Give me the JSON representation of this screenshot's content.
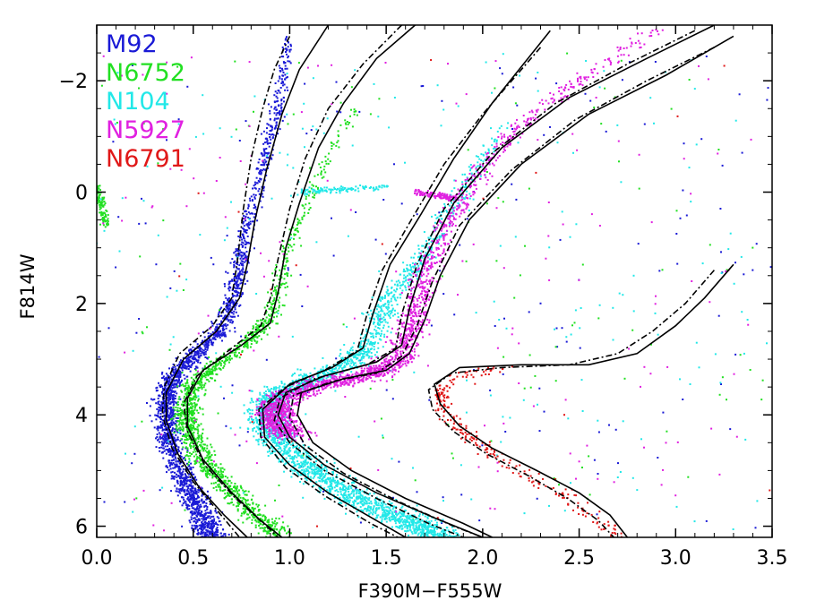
{
  "chart_data": {
    "type": "scatter",
    "title": "",
    "xlabel": "F390M−F555W",
    "ylabel": "F814W",
    "xlim": [
      0.0,
      3.5
    ],
    "ylim": [
      6.2,
      -3.0
    ],
    "y_inverted": true,
    "grid": false,
    "legend_position": "top-left",
    "x_ticks": [
      {
        "value": 0.0,
        "label": "0.0"
      },
      {
        "value": 0.5,
        "label": "0.5"
      },
      {
        "value": 1.0,
        "label": "1.0"
      },
      {
        "value": 1.5,
        "label": "1.5"
      },
      {
        "value": 2.0,
        "label": "2.0"
      },
      {
        "value": 2.5,
        "label": "2.5"
      },
      {
        "value": 3.0,
        "label": "3.0"
      },
      {
        "value": 3.5,
        "label": "3.5"
      }
    ],
    "y_ticks": [
      {
        "value": -2,
        "label": "−2"
      },
      {
        "value": 0,
        "label": "0"
      },
      {
        "value": 2,
        "label": "2"
      },
      {
        "value": 4,
        "label": "4"
      },
      {
        "value": 6,
        "label": "6"
      }
    ],
    "series": [
      {
        "name": "M92",
        "color": "#1a1ad6",
        "ridge": [
          [
            1.0,
            -2.8
          ],
          [
            0.98,
            -2.3
          ],
          [
            0.94,
            -1.6
          ],
          [
            0.9,
            -1.0
          ],
          [
            0.84,
            -0.2
          ],
          [
            0.79,
            0.5
          ],
          [
            0.75,
            1.2
          ],
          [
            0.71,
            1.9
          ],
          [
            0.64,
            2.5
          ],
          [
            0.52,
            2.9
          ],
          [
            0.4,
            3.3
          ],
          [
            0.36,
            3.7
          ],
          [
            0.36,
            4.1
          ],
          [
            0.39,
            4.6
          ],
          [
            0.44,
            5.1
          ],
          [
            0.5,
            5.5
          ],
          [
            0.56,
            5.9
          ],
          [
            0.6,
            6.2
          ]
        ],
        "spread": 0.05,
        "count": 2200,
        "density": [
          0.15,
          0.5,
          1.0,
          0.8
        ]
      },
      {
        "name": "N6752",
        "color": "#22e022",
        "ridge": [
          [
            1.35,
            -1.5
          ],
          [
            1.22,
            -0.8
          ],
          [
            1.12,
            0.0
          ],
          [
            1.02,
            0.8
          ],
          [
            0.95,
            1.6
          ],
          [
            0.9,
            2.3
          ],
          [
            0.78,
            2.7
          ],
          [
            0.62,
            3.1
          ],
          [
            0.5,
            3.5
          ],
          [
            0.46,
            3.9
          ],
          [
            0.48,
            4.3
          ],
          [
            0.55,
            4.8
          ],
          [
            0.68,
            5.3
          ],
          [
            0.82,
            5.8
          ],
          [
            0.95,
            6.2
          ]
        ],
        "spread": 0.05,
        "count": 1500,
        "density": [
          0.1,
          0.4,
          1.0,
          0.9
        ],
        "hb": [
          [
            0.0,
            -0.1
          ],
          [
            0.05,
            0.6
          ]
        ]
      },
      {
        "name": "N104",
        "color": "#22e8e8",
        "ridge": [
          [
            2.1,
            -1.2
          ],
          [
            1.95,
            -0.3
          ],
          [
            1.82,
            0.4
          ],
          [
            1.68,
            1.2
          ],
          [
            1.5,
            2.0
          ],
          [
            1.42,
            2.7
          ],
          [
            1.3,
            3.1
          ],
          [
            1.08,
            3.4
          ],
          [
            0.9,
            3.7
          ],
          [
            0.88,
            4.1
          ],
          [
            0.95,
            4.5
          ],
          [
            1.12,
            5.0
          ],
          [
            1.35,
            5.5
          ],
          [
            1.6,
            5.9
          ],
          [
            1.8,
            6.2
          ]
        ],
        "spread": 0.08,
        "count": 2600,
        "density": [
          0.1,
          0.35,
          0.7,
          1.0
        ],
        "hb": [
          [
            1.05,
            0.0
          ],
          [
            1.5,
            -0.1
          ]
        ]
      },
      {
        "name": "N5927",
        "color": "#e020e0",
        "ridge": [
          [
            2.9,
            -2.9
          ],
          [
            2.5,
            -2.0
          ],
          [
            2.2,
            -1.2
          ],
          [
            1.96,
            -0.3
          ],
          [
            1.82,
            0.6
          ],
          [
            1.7,
            1.5
          ],
          [
            1.64,
            2.3
          ],
          [
            1.58,
            3.0
          ],
          [
            1.4,
            3.3
          ],
          [
            1.1,
            3.5
          ],
          [
            0.93,
            3.8
          ],
          [
            0.93,
            4.1
          ],
          [
            1.0,
            4.4
          ]
        ],
        "spread": 0.07,
        "count": 2000,
        "density": [
          0.2,
          0.4,
          0.8,
          1.0
        ],
        "hb": [
          [
            1.65,
            0.0
          ],
          [
            1.85,
            0.1
          ]
        ]
      },
      {
        "name": "N6791",
        "color": "#e01818",
        "ridge": [
          [
            2.15,
            3.15
          ],
          [
            1.85,
            3.3
          ],
          [
            1.78,
            3.6
          ],
          [
            1.8,
            3.9
          ],
          [
            1.9,
            4.3
          ],
          [
            2.05,
            4.7
          ],
          [
            2.25,
            5.1
          ],
          [
            2.45,
            5.5
          ],
          [
            2.6,
            5.9
          ],
          [
            2.7,
            6.2
          ]
        ],
        "spread": 0.05,
        "count": 260,
        "density": [
          0.6,
          0.9,
          0.7,
          0.6
        ]
      }
    ],
    "isochrones": [
      {
        "style": "solid",
        "points": [
          [
            1.2,
            -3.0
          ],
          [
            1.05,
            -2.2
          ],
          [
            0.96,
            -1.4
          ],
          [
            0.88,
            -0.4
          ],
          [
            0.82,
            0.5
          ],
          [
            0.78,
            1.3
          ],
          [
            0.74,
            1.9
          ],
          [
            0.62,
            2.5
          ],
          [
            0.45,
            3.0
          ],
          [
            0.36,
            3.6
          ],
          [
            0.36,
            4.1
          ],
          [
            0.42,
            4.7
          ],
          [
            0.53,
            5.3
          ],
          [
            0.66,
            5.8
          ],
          [
            0.78,
            6.2
          ]
        ]
      },
      {
        "style": "dashdot",
        "points": [
          [
            1.0,
            -2.8
          ],
          [
            0.92,
            -2.2
          ],
          [
            0.86,
            -1.5
          ],
          [
            0.8,
            -0.6
          ],
          [
            0.76,
            0.3
          ],
          [
            0.73,
            1.2
          ],
          [
            0.7,
            1.9
          ],
          [
            0.6,
            2.4
          ],
          [
            0.43,
            2.9
          ],
          [
            0.35,
            3.5
          ],
          [
            0.34,
            4.0
          ],
          [
            0.39,
            4.6
          ],
          [
            0.5,
            5.2
          ],
          [
            0.62,
            5.7
          ],
          [
            0.74,
            6.2
          ]
        ]
      },
      {
        "style": "solid",
        "points": [
          [
            1.65,
            -3.0
          ],
          [
            1.45,
            -2.4
          ],
          [
            1.28,
            -1.6
          ],
          [
            1.15,
            -0.8
          ],
          [
            1.05,
            0.2
          ],
          [
            0.98,
            1.0
          ],
          [
            0.94,
            1.8
          ],
          [
            0.9,
            2.35
          ],
          [
            0.75,
            2.75
          ],
          [
            0.55,
            3.2
          ],
          [
            0.47,
            3.7
          ],
          [
            0.47,
            4.2
          ],
          [
            0.55,
            4.8
          ],
          [
            0.7,
            5.4
          ],
          [
            0.85,
            5.9
          ],
          [
            0.96,
            6.2
          ]
        ]
      },
      {
        "style": "dashdot",
        "points": [
          [
            1.58,
            -3.0
          ],
          [
            1.38,
            -2.3
          ],
          [
            1.2,
            -1.5
          ],
          [
            1.08,
            -0.6
          ],
          [
            1.0,
            0.3
          ],
          [
            0.94,
            1.2
          ],
          [
            0.9,
            1.9
          ],
          [
            0.85,
            2.4
          ],
          [
            0.7,
            2.8
          ],
          [
            0.52,
            3.3
          ],
          [
            0.45,
            3.8
          ],
          [
            0.47,
            4.3
          ],
          [
            0.56,
            4.9
          ],
          [
            0.72,
            5.5
          ],
          [
            0.88,
            6.0
          ],
          [
            0.94,
            6.2
          ]
        ]
      },
      {
        "style": "solid",
        "points": [
          [
            2.35,
            -2.9
          ],
          [
            2.05,
            -1.6
          ],
          [
            1.85,
            -0.6
          ],
          [
            1.68,
            0.4
          ],
          [
            1.52,
            1.3
          ],
          [
            1.43,
            2.2
          ],
          [
            1.38,
            2.8
          ],
          [
            1.22,
            3.15
          ],
          [
            1.0,
            3.45
          ],
          [
            0.86,
            3.9
          ],
          [
            0.87,
            4.4
          ],
          [
            1.0,
            4.9
          ],
          [
            1.2,
            5.4
          ],
          [
            1.45,
            5.9
          ],
          [
            1.6,
            6.2
          ]
        ]
      },
      {
        "style": "dashdot",
        "points": [
          [
            2.3,
            -2.6
          ],
          [
            2.0,
            -1.4
          ],
          [
            1.8,
            -0.5
          ],
          [
            1.63,
            0.5
          ],
          [
            1.48,
            1.4
          ],
          [
            1.4,
            2.2
          ],
          [
            1.35,
            2.85
          ],
          [
            1.18,
            3.2
          ],
          [
            0.98,
            3.5
          ],
          [
            0.84,
            3.9
          ],
          [
            0.85,
            4.4
          ],
          [
            0.98,
            4.95
          ],
          [
            1.18,
            5.45
          ],
          [
            1.42,
            5.95
          ],
          [
            1.56,
            6.2
          ]
        ]
      },
      {
        "style": "solid",
        "points": [
          [
            3.2,
            -3.0
          ],
          [
            2.85,
            -2.4
          ],
          [
            2.45,
            -1.7
          ],
          [
            2.1,
            -0.8
          ],
          [
            1.85,
            0.2
          ],
          [
            1.7,
            1.2
          ],
          [
            1.62,
            2.1
          ],
          [
            1.58,
            2.75
          ],
          [
            1.45,
            3.05
          ],
          [
            1.18,
            3.3
          ],
          [
            0.98,
            3.6
          ],
          [
            0.94,
            4.0
          ],
          [
            1.0,
            4.4
          ],
          [
            1.18,
            4.9
          ],
          [
            1.45,
            5.4
          ],
          [
            1.75,
            5.85
          ],
          [
            2.0,
            6.2
          ]
        ]
      },
      {
        "style": "dashdot",
        "points": [
          [
            3.1,
            -2.9
          ],
          [
            2.75,
            -2.3
          ],
          [
            2.38,
            -1.6
          ],
          [
            2.05,
            -0.7
          ],
          [
            1.8,
            0.3
          ],
          [
            1.66,
            1.3
          ],
          [
            1.58,
            2.2
          ],
          [
            1.55,
            2.8
          ],
          [
            1.4,
            3.1
          ],
          [
            1.13,
            3.35
          ],
          [
            0.95,
            3.7
          ],
          [
            0.92,
            4.1
          ],
          [
            1.0,
            4.5
          ],
          [
            1.18,
            5.0
          ],
          [
            1.45,
            5.5
          ],
          [
            1.72,
            5.95
          ],
          [
            1.9,
            6.2
          ]
        ]
      },
      {
        "style": "solid",
        "points": [
          [
            3.3,
            -2.8
          ],
          [
            2.95,
            -2.1
          ],
          [
            2.55,
            -1.4
          ],
          [
            2.2,
            -0.5
          ],
          [
            1.93,
            0.5
          ],
          [
            1.78,
            1.5
          ],
          [
            1.7,
            2.3
          ],
          [
            1.62,
            2.9
          ],
          [
            1.5,
            3.2
          ],
          [
            1.28,
            3.35
          ],
          [
            1.06,
            3.6
          ],
          [
            1.04,
            4.0
          ],
          [
            1.12,
            4.5
          ],
          [
            1.32,
            5.0
          ],
          [
            1.6,
            5.5
          ],
          [
            1.9,
            5.95
          ],
          [
            2.05,
            6.2
          ]
        ]
      },
      {
        "style": "dashdot",
        "points": [
          [
            3.2,
            -2.6
          ],
          [
            2.85,
            -2.0
          ],
          [
            2.48,
            -1.3
          ],
          [
            2.15,
            -0.4
          ],
          [
            1.88,
            0.6
          ],
          [
            1.74,
            1.6
          ],
          [
            1.66,
            2.4
          ],
          [
            1.58,
            2.95
          ],
          [
            1.45,
            3.25
          ],
          [
            1.22,
            3.4
          ],
          [
            1.02,
            3.65
          ],
          [
            1.0,
            4.05
          ],
          [
            1.08,
            4.55
          ],
          [
            1.28,
            5.05
          ],
          [
            1.56,
            5.55
          ],
          [
            1.85,
            6.0
          ],
          [
            2.0,
            6.2
          ]
        ]
      },
      {
        "style": "solid",
        "points": [
          [
            3.3,
            1.3
          ],
          [
            3.15,
            1.9
          ],
          [
            3.0,
            2.4
          ],
          [
            2.8,
            2.9
          ],
          [
            2.55,
            3.1
          ],
          [
            2.2,
            3.1
          ],
          [
            1.88,
            3.15
          ],
          [
            1.75,
            3.45
          ],
          [
            1.78,
            3.8
          ],
          [
            1.88,
            4.2
          ],
          [
            2.05,
            4.6
          ],
          [
            2.28,
            5.0
          ],
          [
            2.5,
            5.4
          ],
          [
            2.66,
            5.8
          ],
          [
            2.75,
            6.2
          ]
        ]
      },
      {
        "style": "dashdot",
        "points": [
          [
            3.2,
            1.4
          ],
          [
            3.05,
            2.0
          ],
          [
            2.88,
            2.5
          ],
          [
            2.7,
            2.9
          ],
          [
            2.45,
            3.1
          ],
          [
            2.1,
            3.15
          ],
          [
            1.84,
            3.25
          ],
          [
            1.72,
            3.55
          ],
          [
            1.74,
            3.9
          ],
          [
            1.85,
            4.3
          ],
          [
            2.02,
            4.7
          ],
          [
            2.24,
            5.1
          ],
          [
            2.44,
            5.5
          ],
          [
            2.6,
            5.9
          ],
          [
            2.68,
            6.2
          ]
        ]
      }
    ]
  }
}
